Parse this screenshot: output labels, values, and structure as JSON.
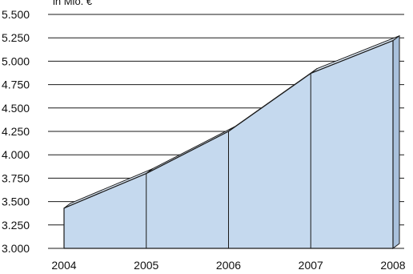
{
  "chart_data": {
    "type": "area",
    "unit_label": "in Mio. €",
    "x": [
      "2004",
      "2005",
      "2006",
      "2007",
      "2008"
    ],
    "series": [
      {
        "values": [
          3430,
          3800,
          4250,
          4870,
          5220
        ]
      }
    ],
    "ylim": [
      3000,
      5500
    ],
    "y_ticks": [
      "3.000",
      "3.250",
      "3.500",
      "3.750",
      "4.000",
      "4.250",
      "4.500",
      "4.750",
      "5.000",
      "5.250",
      "5.500"
    ],
    "grid": true,
    "style": "3d-area"
  },
  "colors": {
    "area_front": "#c5d9ee",
    "area_top": "#dde9f6",
    "area_side": "#a9c1dc",
    "outline": "#1a1a1a",
    "grid": "#1a1a1a"
  }
}
